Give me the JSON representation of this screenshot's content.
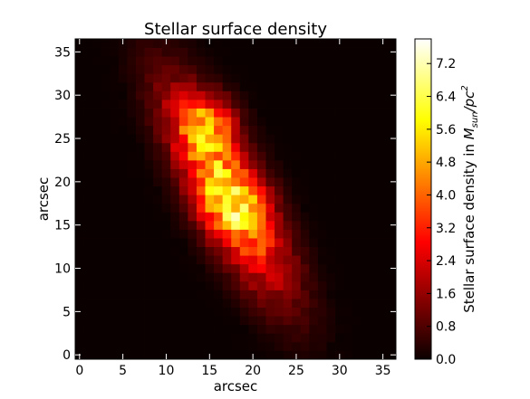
{
  "chart_data": {
    "type": "heatmap",
    "title": "Stellar surface density",
    "xlabel": "arcsec",
    "ylabel": "arcsec",
    "xlim": [
      -0.5,
      36.5
    ],
    "ylim": [
      -0.5,
      36.5
    ],
    "xticks": [
      0,
      5,
      10,
      15,
      20,
      25,
      30,
      35
    ],
    "yticks": [
      0,
      5,
      10,
      15,
      20,
      25,
      30,
      35
    ],
    "grid": false,
    "colormap": "hot",
    "pixel_size_arcsec": 1,
    "colorbar": {
      "label": "Stellar surface density in M_sun/pc^2",
      "label_main": "Stellar surface density in ",
      "label_symbol": "M",
      "label_sub": "sun",
      "label_slash": "/pc",
      "label_sup": "2",
      "range": [
        0,
        7.8
      ],
      "ticks": [
        "0.0",
        "0.8",
        "1.6",
        "2.4",
        "3.2",
        "4.0",
        "4.8",
        "5.6",
        "6.4",
        "7.2"
      ],
      "placement": "right"
    },
    "model": {
      "center": [
        17.0,
        19.0
      ],
      "position_angle_deg": 28,
      "major_axis_sigma_arcsec": 8.5,
      "minor_axis_sigma_arcsec": 2.6,
      "peak_value": 7.6,
      "peak_position": [
        15.0,
        27.0
      ],
      "secondary_peak_position": [
        17.5,
        17.0
      ]
    }
  }
}
